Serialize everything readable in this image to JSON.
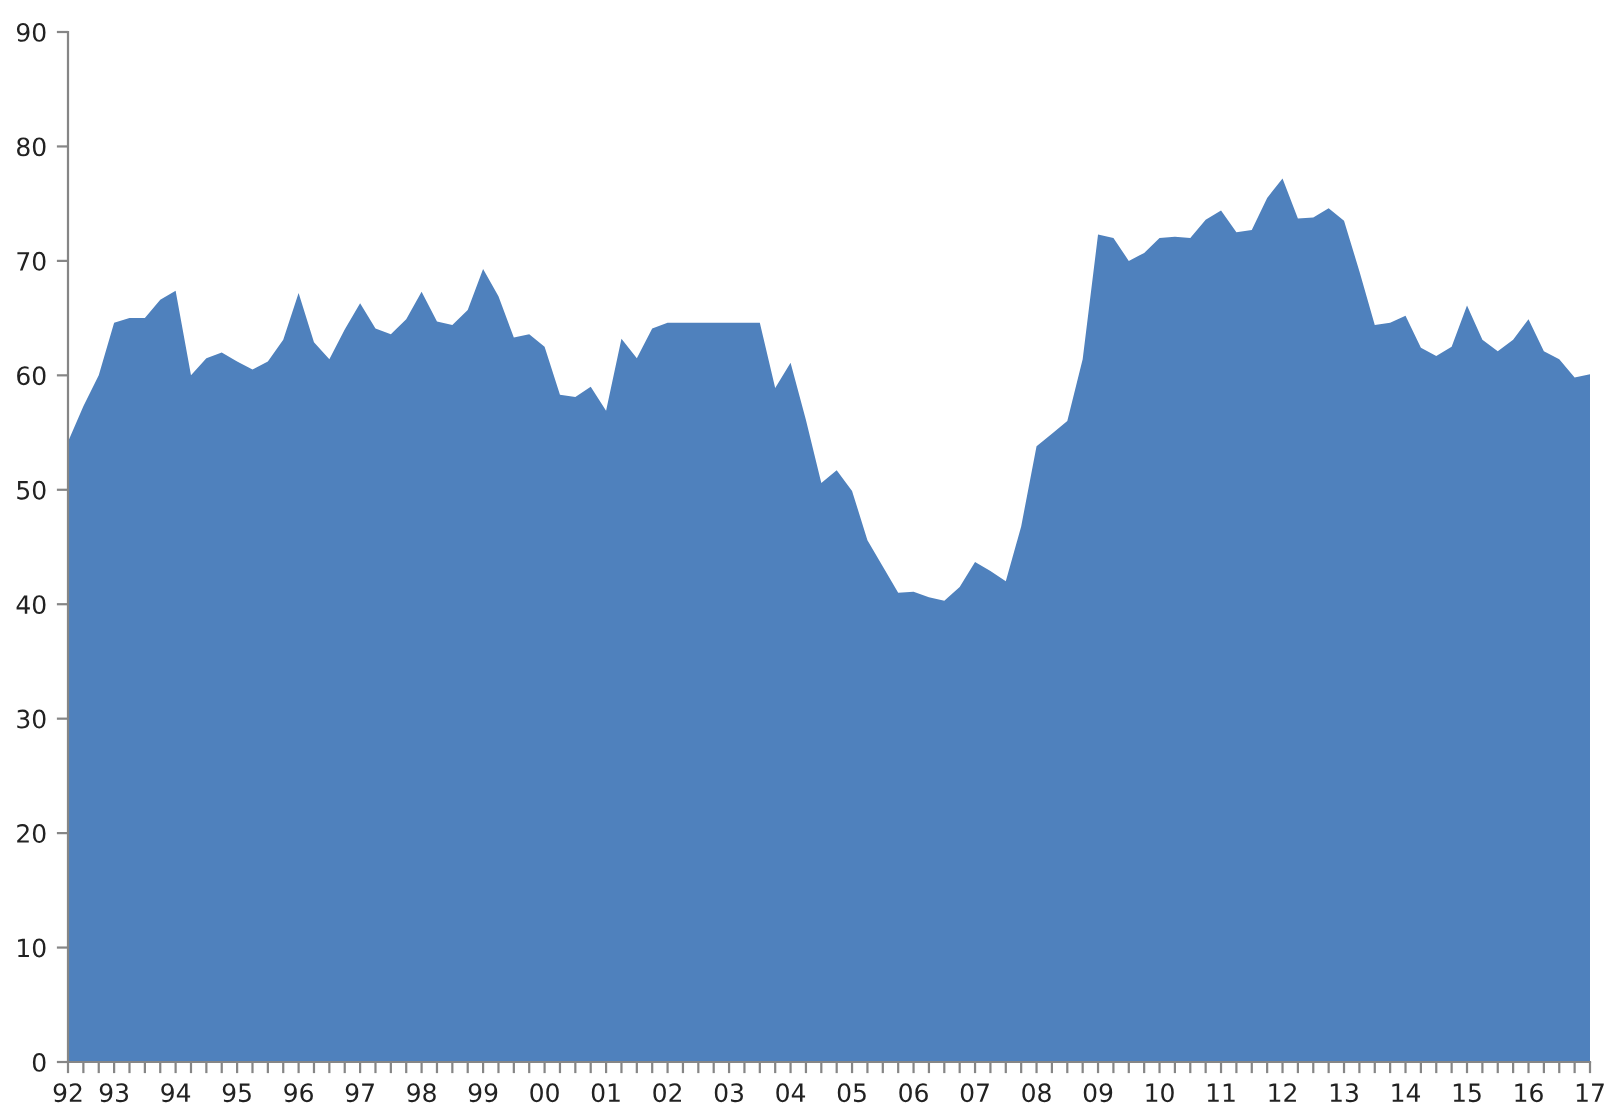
{
  "chart_data": {
    "type": "area",
    "categories": [
      "92",
      null,
      null,
      "93",
      null,
      null,
      null,
      "94",
      null,
      null,
      null,
      "95",
      null,
      null,
      null,
      "96",
      null,
      null,
      null,
      "97",
      null,
      null,
      null,
      "98",
      null,
      null,
      null,
      "99",
      null,
      null,
      null,
      "00",
      null,
      null,
      null,
      "01",
      null,
      null,
      null,
      "02",
      null,
      null,
      null,
      "03",
      null,
      null,
      null,
      "04",
      null,
      null,
      null,
      "05",
      null,
      null,
      null,
      "06",
      null,
      null,
      null,
      "07",
      null,
      null,
      null,
      "08",
      null,
      null,
      null,
      "09",
      null,
      null,
      null,
      "10",
      null,
      null,
      null,
      "11",
      null,
      null,
      null,
      "12",
      null,
      null,
      null,
      "13",
      null,
      null,
      null,
      "14",
      null,
      null,
      null,
      "15",
      null,
      null,
      null,
      "16",
      null,
      null,
      null,
      "17"
    ],
    "series": [
      {
        "color": "#4f81bd",
        "values": [
          54.2,
          57.3,
          60.0,
          64.6,
          65.0,
          65.0,
          66.6,
          67.4,
          60.0,
          61.5,
          62.0,
          61.2,
          60.5,
          61.2,
          63.1,
          67.2,
          62.9,
          61.4,
          64.0,
          66.3,
          64.1,
          63.6,
          64.9,
          67.3,
          64.7,
          64.4,
          65.7,
          69.3,
          66.9,
          63.3,
          63.6,
          62.5,
          58.3,
          58.1,
          59.0,
          56.9,
          63.2,
          61.5,
          64.1,
          64.6,
          64.6,
          64.6,
          64.6,
          64.6,
          64.6,
          64.6,
          58.9,
          61.1,
          56.1,
          50.6,
          51.7,
          49.9,
          45.6,
          43.3,
          41.0,
          41.1,
          40.6,
          40.3,
          41.5,
          43.7,
          42.9,
          42.0,
          46.8,
          53.8,
          54.9,
          56.0,
          61.4,
          72.3,
          72.0,
          70.0,
          70.7,
          72.0,
          72.1,
          72.0,
          73.6,
          74.4,
          72.5,
          72.7,
          75.5,
          77.2,
          73.7,
          73.8,
          74.6,
          73.5,
          69.1,
          64.4,
          64.6,
          65.2,
          62.4,
          61.7,
          62.5,
          66.1,
          63.1,
          62.1,
          63.1,
          64.9,
          62.1,
          61.4,
          59.8,
          60.1
        ]
      }
    ],
    "ylim": [
      0,
      90
    ],
    "yticks": [
      0,
      10,
      20,
      30,
      40,
      50,
      60,
      70,
      80,
      90
    ],
    "grid": false,
    "legend": false
  }
}
